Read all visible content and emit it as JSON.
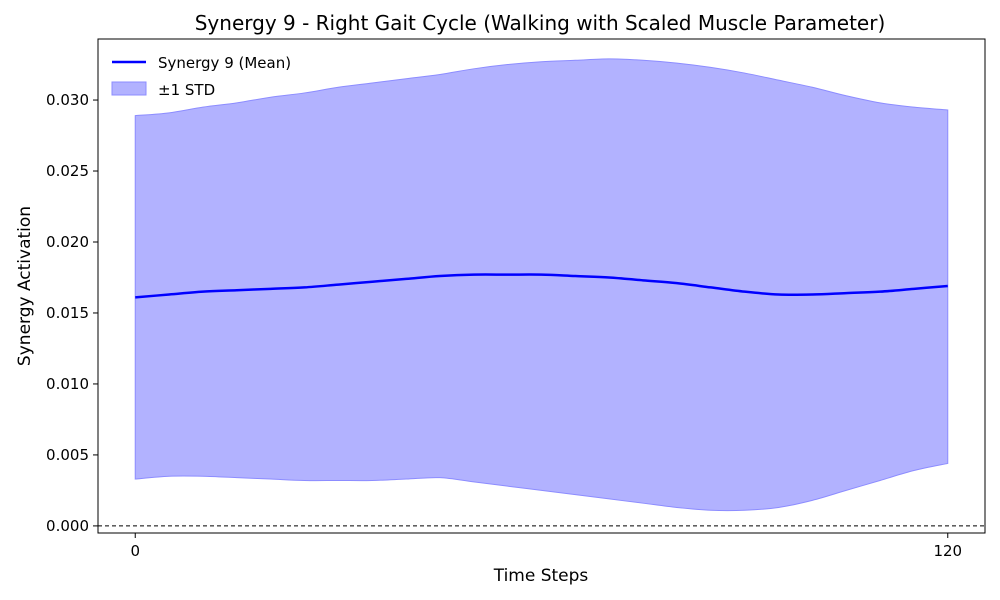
{
  "chart_data": {
    "type": "area",
    "title": "Synergy 9 - Right Gait Cycle (Walking with Scaled Muscle Parameter)",
    "xlabel": "Time Steps",
    "ylabel": "Synergy Activation",
    "xlim": [
      -5.5,
      125.5
    ],
    "ylim": [
      -0.0005,
      0.0343
    ],
    "x_ticks": [
      0,
      120
    ],
    "y_ticks": [
      0.0,
      0.005,
      0.01,
      0.015,
      0.02,
      0.025,
      0.03
    ],
    "y_tick_labels": [
      "0.000",
      "0.005",
      "0.010",
      "0.015",
      "0.020",
      "0.025",
      "0.030"
    ],
    "grid": false,
    "legend_position": "top-left",
    "reference_line": {
      "y": 0,
      "style": "dashed",
      "color": "#000000"
    },
    "colors": {
      "mean": "#0000ff",
      "band": "#b2b2ff",
      "band_edge": "#8c8cff"
    },
    "x": [
      0,
      5,
      10,
      15,
      20,
      25,
      30,
      35,
      40,
      45,
      50,
      55,
      60,
      65,
      70,
      75,
      80,
      85,
      90,
      95,
      100,
      105,
      110,
      115,
      120
    ],
    "series": [
      {
        "name": "Synergy 9 (Mean)",
        "values": [
          0.0161,
          0.0163,
          0.0165,
          0.0166,
          0.0167,
          0.0168,
          0.017,
          0.0172,
          0.0174,
          0.0176,
          0.0177,
          0.0177,
          0.0177,
          0.0176,
          0.0175,
          0.0173,
          0.0171,
          0.0168,
          0.0165,
          0.0163,
          0.0163,
          0.0164,
          0.0165,
          0.0167,
          0.0169
        ]
      },
      {
        "name": "±1 STD",
        "upper": [
          0.0289,
          0.0291,
          0.0295,
          0.0298,
          0.0302,
          0.0305,
          0.0309,
          0.0312,
          0.0315,
          0.0318,
          0.0322,
          0.0325,
          0.0327,
          0.0328,
          0.0329,
          0.0328,
          0.0326,
          0.0323,
          0.0319,
          0.0314,
          0.0309,
          0.0303,
          0.0298,
          0.0295,
          0.0293
        ],
        "lower": [
          0.0033,
          0.0035,
          0.0035,
          0.0034,
          0.0033,
          0.0032,
          0.0032,
          0.0032,
          0.0033,
          0.0034,
          0.0031,
          0.0028,
          0.0025,
          0.0022,
          0.0019,
          0.0016,
          0.0013,
          0.0011,
          0.0011,
          0.0013,
          0.0018,
          0.0025,
          0.0032,
          0.0039,
          0.0044
        ]
      }
    ]
  }
}
